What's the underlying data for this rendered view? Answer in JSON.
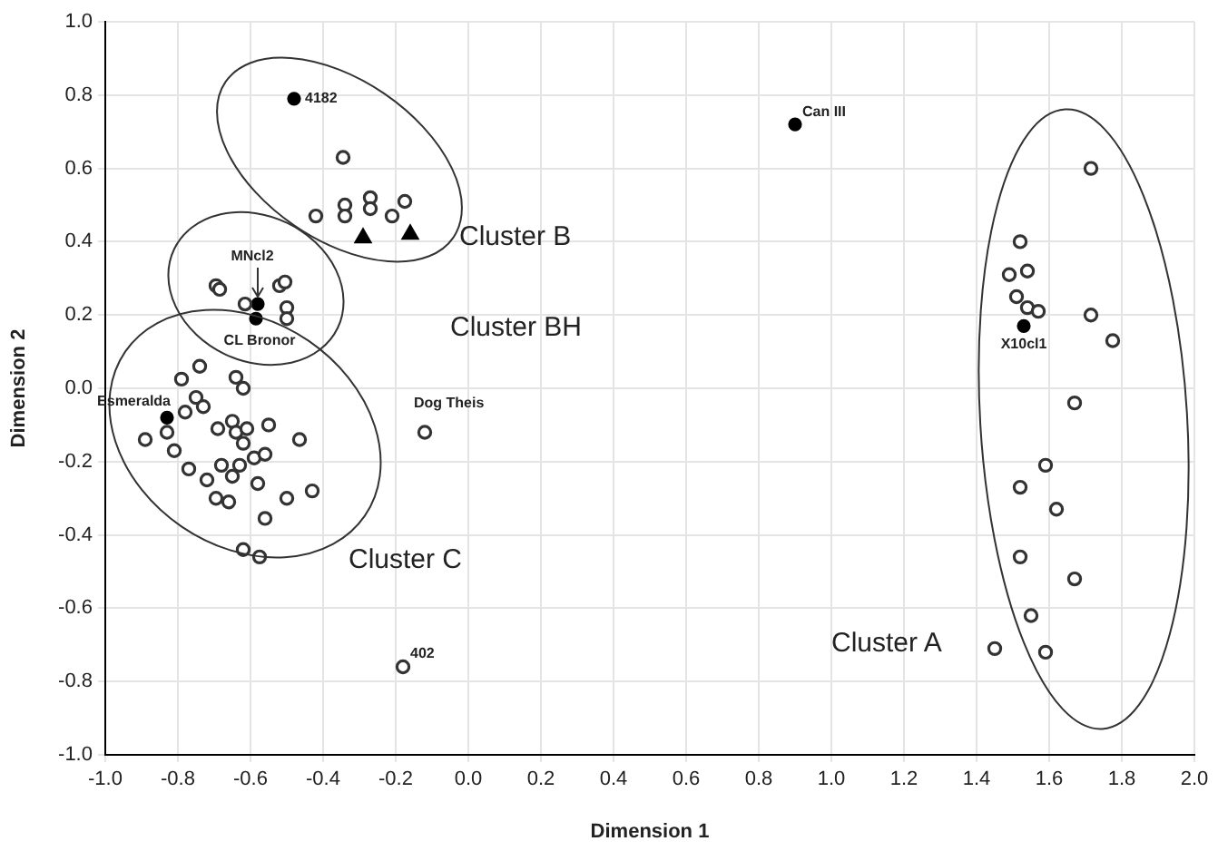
{
  "chart_data": {
    "type": "scatter",
    "xlabel": "Dimension 1",
    "ylabel": "Dimension 2",
    "xlim": [
      -1,
      2
    ],
    "ylim": [
      -1,
      1
    ],
    "xticks": [
      {
        "value": -1,
        "label": "-1.0"
      },
      {
        "value": -0.8,
        "label": "-0.8"
      },
      {
        "value": -0.6,
        "label": "-0.6"
      },
      {
        "value": -0.4,
        "label": "-0.4"
      },
      {
        "value": -0.2,
        "label": "-0.2"
      },
      {
        "value": 0,
        "label": "0.0"
      },
      {
        "value": 0.2,
        "label": "0.2"
      },
      {
        "value": 0.4,
        "label": "0.4"
      },
      {
        "value": 0.6,
        "label": "0.6"
      },
      {
        "value": 0.8,
        "label": "0.8"
      },
      {
        "value": 1,
        "label": "1.0"
      },
      {
        "value": 1.2,
        "label": "1.2"
      },
      {
        "value": 1.4,
        "label": "1.4"
      },
      {
        "value": 1.6,
        "label": "1.6"
      },
      {
        "value": 1.8,
        "label": "1.8"
      },
      {
        "value": 2,
        "label": "2.0"
      }
    ],
    "yticks": [
      {
        "value": -1,
        "label": "-1.0"
      },
      {
        "value": -0.8,
        "label": "-0.8"
      },
      {
        "value": -0.6,
        "label": "-0.6"
      },
      {
        "value": -0.4,
        "label": "-0.4"
      },
      {
        "value": -0.2,
        "label": "-0.2"
      },
      {
        "value": 0,
        "label": "0.0"
      },
      {
        "value": 0.2,
        "label": "0.2"
      },
      {
        "value": 0.4,
        "label": "0.4"
      },
      {
        "value": 0.6,
        "label": "0.6"
      },
      {
        "value": 0.8,
        "label": "0.8"
      },
      {
        "value": 1,
        "label": "1.0"
      }
    ],
    "grid": true,
    "legend": false,
    "series": [
      {
        "color": "#333333",
        "marker": "circle",
        "x": [
          -0.345,
          -0.42,
          -0.34,
          -0.34,
          -0.27,
          -0.27,
          -0.21,
          -0.175,
          -0.695,
          -0.685,
          -0.615,
          -0.52,
          -0.505,
          -0.5,
          -0.5,
          -0.74,
          -0.79,
          -0.64,
          -0.62,
          -0.75,
          -0.73,
          -0.78,
          -0.83,
          -0.89,
          -0.81,
          -0.65,
          -0.69,
          -0.64,
          -0.61,
          -0.62,
          -0.55,
          -0.465,
          -0.59,
          -0.56,
          -0.77,
          -0.68,
          -0.63,
          -0.72,
          -0.65,
          -0.58,
          -0.695,
          -0.66,
          -0.5,
          -0.43,
          -0.56,
          -0.62,
          -0.575,
          -0.12,
          -0.18,
          1.715,
          1.52,
          1.49,
          1.54,
          1.51,
          1.54,
          1.57,
          1.715,
          1.775,
          1.67,
          1.59,
          1.52,
          1.62,
          1.52,
          1.67,
          1.55,
          1.45,
          1.59
        ],
        "values": [
          0.63,
          0.47,
          0.5,
          0.47,
          0.52,
          0.49,
          0.47,
          0.51,
          0.28,
          0.27,
          0.23,
          0.28,
          0.29,
          0.22,
          0.19,
          0.06,
          0.025,
          0.03,
          0,
          -0.025,
          -0.05,
          -0.065,
          -0.12,
          -0.14,
          -0.17,
          -0.09,
          -0.11,
          -0.12,
          -0.11,
          -0.15,
          -0.1,
          -0.14,
          -0.19,
          -0.18,
          -0.22,
          -0.21,
          -0.21,
          -0.25,
          -0.24,
          -0.26,
          -0.3,
          -0.31,
          -0.3,
          -0.28,
          -0.355,
          -0.44,
          -0.46,
          -0.12,
          -0.76,
          0.6,
          0.4,
          0.31,
          0.32,
          0.25,
          0.22,
          0.21,
          0.2,
          0.13,
          -0.04,
          -0.21,
          -0.27,
          -0.33,
          -0.46,
          -0.52,
          -0.62,
          -0.71,
          -0.72
        ]
      },
      {
        "color": "#000000",
        "marker": "circle",
        "x": [
          -0.48,
          -0.58,
          -0.585,
          -0.83,
          0.9,
          1.53
        ],
        "values": [
          0.79,
          0.23,
          0.19,
          -0.08,
          0.72,
          0.17
        ]
      },
      {
        "color": "#000000",
        "marker": "triangle",
        "x": [
          -0.29,
          -0.16
        ],
        "values": [
          0.41,
          0.42
        ]
      }
    ],
    "annotations": [
      {
        "text": "4182",
        "x": -0.48,
        "y": 0.79
      },
      {
        "text": "MNcl2",
        "x": -0.58,
        "y": 0.23
      },
      {
        "text": "CL Bronor",
        "x": -0.585,
        "y": 0.19
      },
      {
        "text": "Esmeralda",
        "x": -0.83,
        "y": -0.08
      },
      {
        "text": "Dog Theis",
        "x": -0.12,
        "y": -0.12
      },
      {
        "text": "402",
        "x": -0.18,
        "y": -0.76
      },
      {
        "text": "Can III",
        "x": 0.9,
        "y": 0.72
      },
      {
        "text": "X10cl1",
        "x": 1.53,
        "y": 0.17
      },
      "Cluster B",
      "Cluster BH",
      "Cluster C",
      "Cluster A"
    ]
  }
}
